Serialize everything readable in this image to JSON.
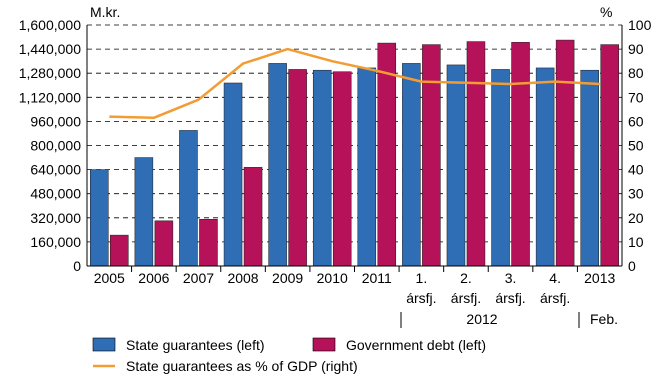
{
  "chart_data": {
    "type": "bar",
    "left_axis_unit": "M.kr.",
    "right_axis_unit": "%",
    "categories": [
      {
        "line1": "2005",
        "line2": ""
      },
      {
        "line1": "2006",
        "line2": ""
      },
      {
        "line1": "2007",
        "line2": ""
      },
      {
        "line1": "2008",
        "line2": ""
      },
      {
        "line1": "2009",
        "line2": ""
      },
      {
        "line1": "2010",
        "line2": ""
      },
      {
        "line1": "2011",
        "line2": ""
      },
      {
        "line1": "1.",
        "line2": "ársfj."
      },
      {
        "line1": "2.",
        "line2": "ársfj."
      },
      {
        "line1": "3.",
        "line2": "ársfj."
      },
      {
        "line1": "4.",
        "line2": "ársfj."
      },
      {
        "line1": "2013",
        "line2": ""
      }
    ],
    "group_labels": [
      {
        "text": "2012"
      },
      {
        "text": "Feb."
      }
    ],
    "left_ylim": [
      0,
      1600000
    ],
    "right_ylim": [
      0,
      100
    ],
    "left_ticks": [
      "0",
      "160,000",
      "320,000",
      "480,000",
      "640,000",
      "800,000",
      "960,000",
      "1,120,000",
      "1,280,000",
      "1,440,000",
      "1,600,000"
    ],
    "right_ticks": [
      "0",
      "10",
      "20",
      "30",
      "40",
      "50",
      "60",
      "70",
      "80",
      "90",
      "100"
    ],
    "series": [
      {
        "name": "State guarantees (left)",
        "kind": "bar",
        "axis": "left",
        "color": "#2f6db5",
        "values": [
          640000,
          720000,
          900000,
          1215000,
          1345000,
          1300000,
          1315000,
          1345000,
          1335000,
          1305000,
          1315000,
          1300000
        ]
      },
      {
        "name": "Government debt (left)",
        "kind": "bar",
        "axis": "left",
        "color": "#b5125a",
        "values": [
          205000,
          300000,
          310000,
          655000,
          1305000,
          1290000,
          1480000,
          1470000,
          1490000,
          1485000,
          1500000,
          1470000
        ]
      },
      {
        "name": "State guarantees as % of GDP (right)",
        "kind": "line",
        "axis": "right",
        "color": "#f39c33",
        "values": [
          62,
          61.5,
          69,
          84,
          90,
          85,
          81,
          76.5,
          76,
          75.5,
          76.5,
          75.5
        ]
      }
    ],
    "grid": "dashed horizontal",
    "legend_placement": "bottom-left"
  }
}
